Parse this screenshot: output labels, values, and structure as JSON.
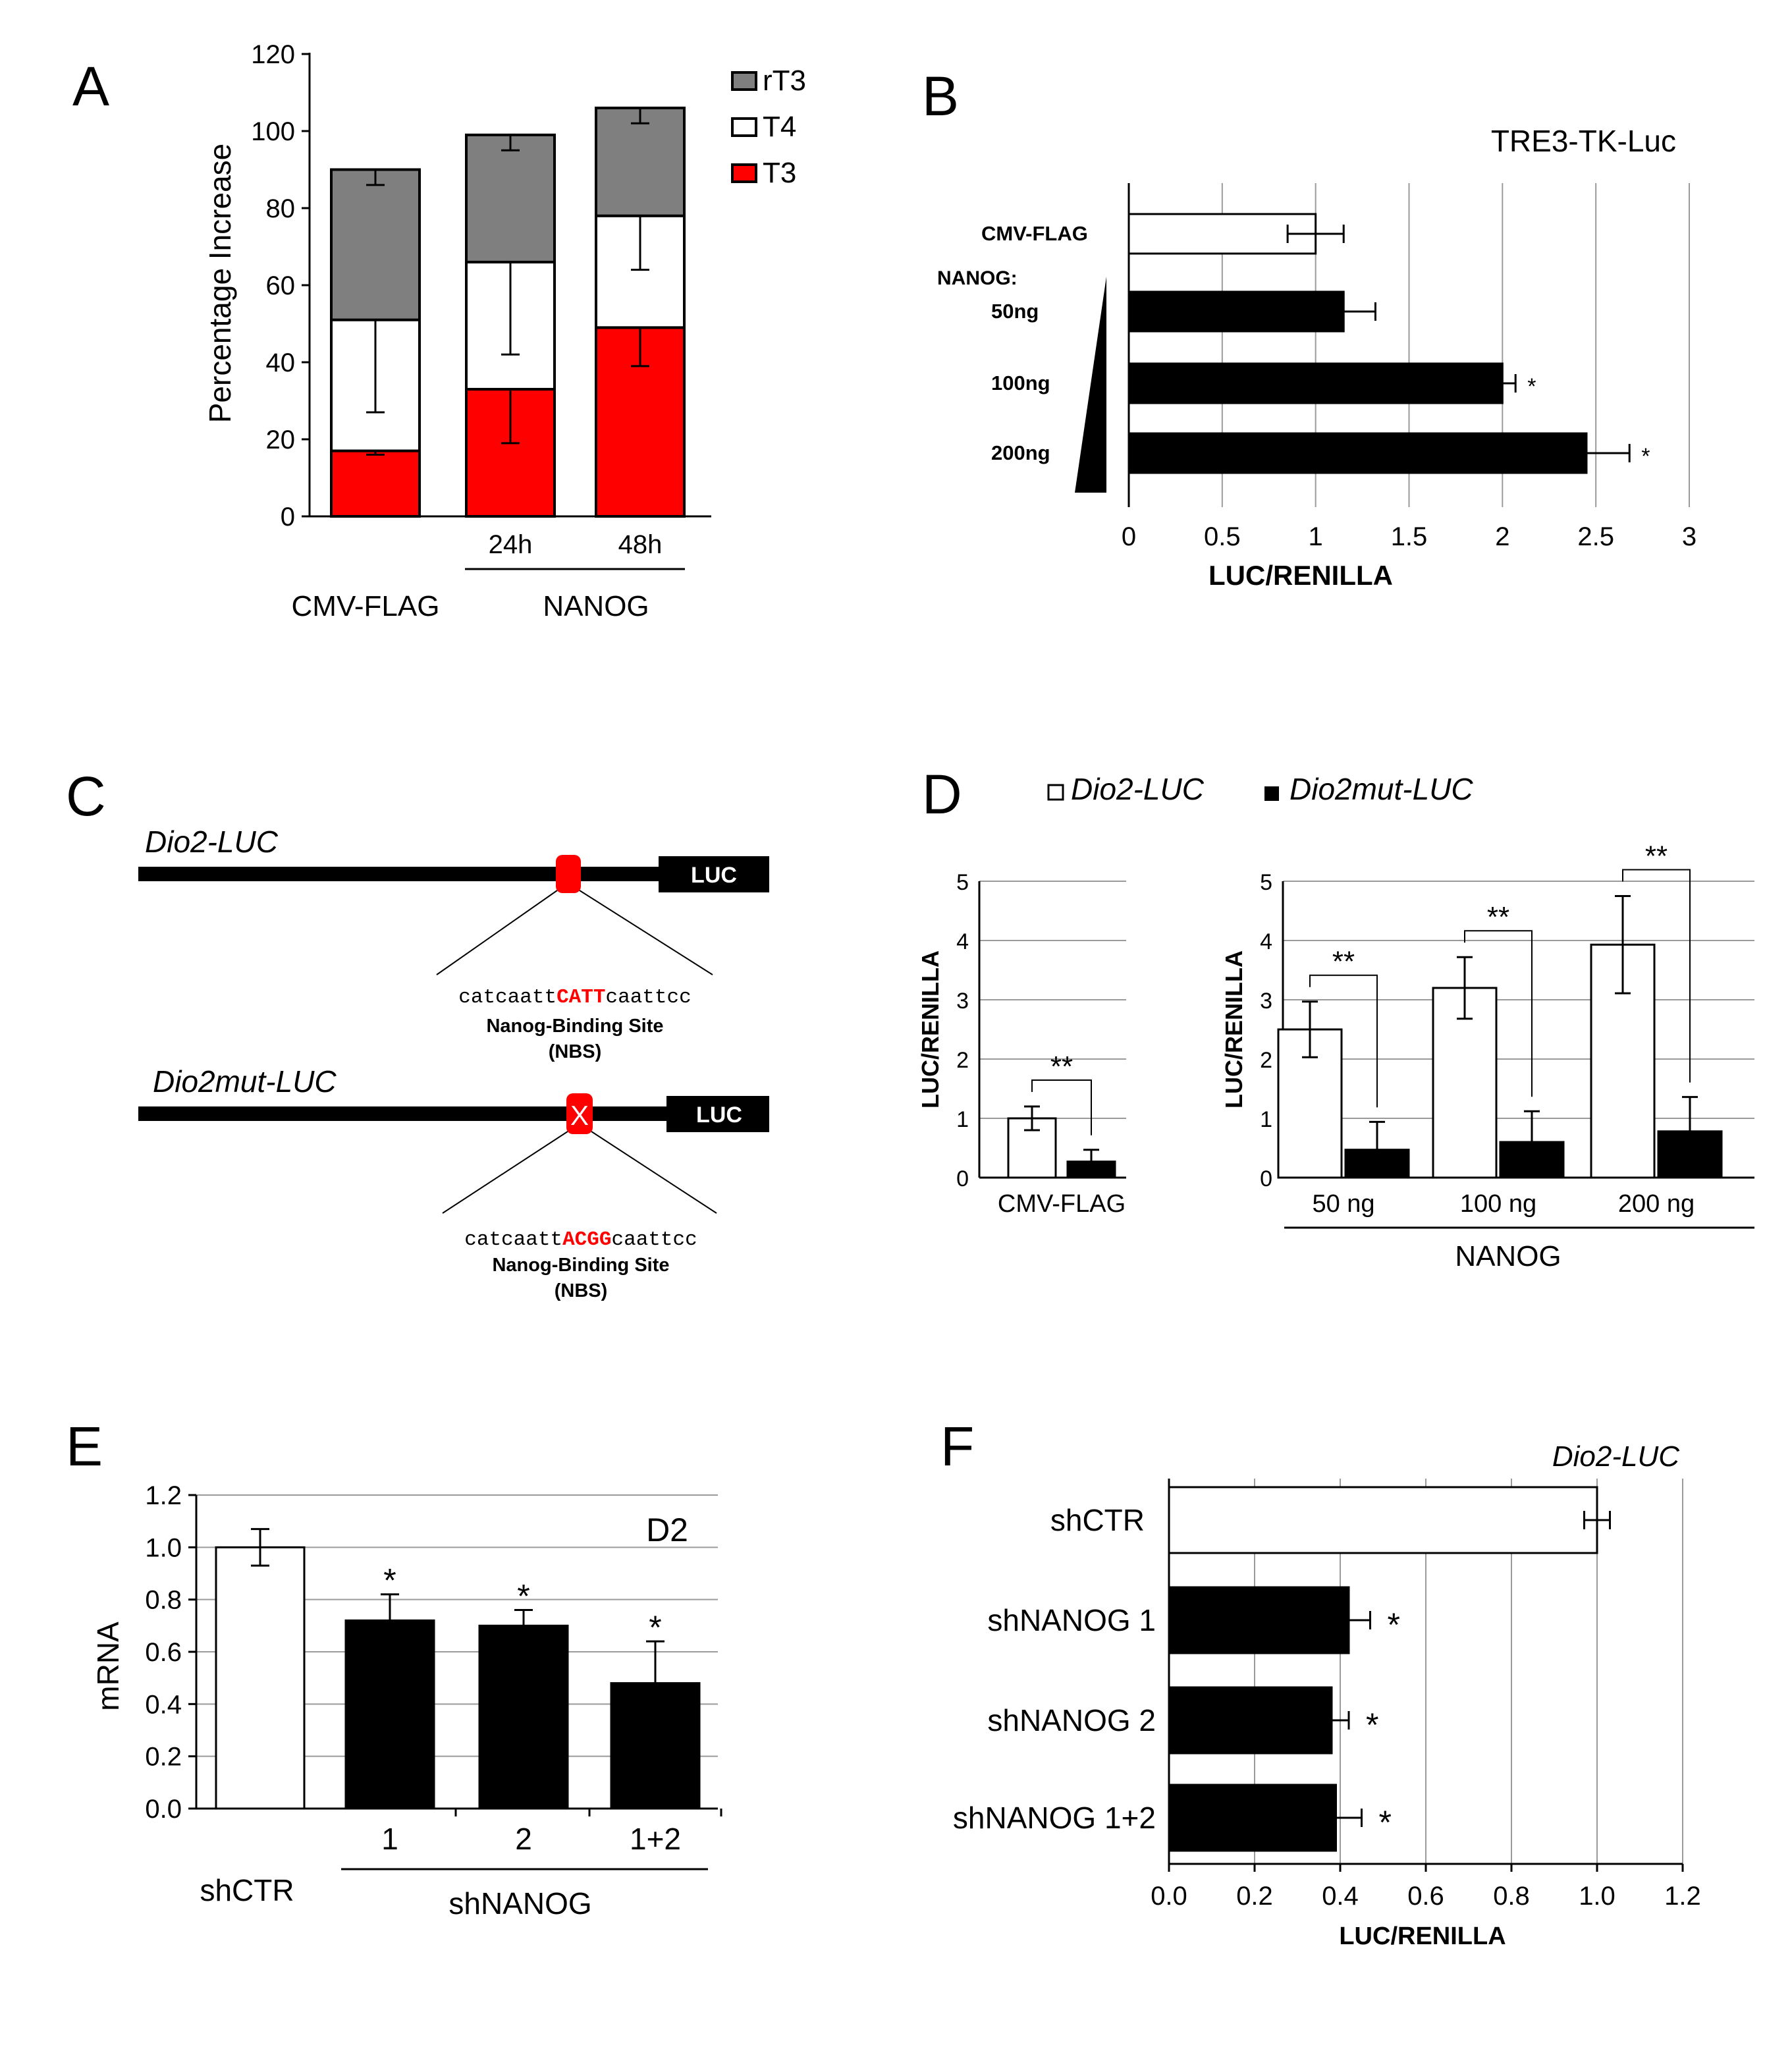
{
  "colors": {
    "red": "#ff0000",
    "grey": "#7f7f7f",
    "black": "#000000",
    "white": "#ffffff",
    "grid": "#9a9a9a"
  },
  "panels": {
    "A": {
      "letter": "A",
      "sub_24h": "24h",
      "sub_48h": "48h",
      "group_ctrl": "CMV-FLAG",
      "group_nanog": "NANOG"
    },
    "B": {
      "letter": "B",
      "nanog_header": "NANOG:"
    },
    "C": {
      "letter": "C",
      "construct1": {
        "name": "Dio2-LUC",
        "luc": "LUC",
        "seq_prefix": "catcaatt",
        "seq_core": "CATT",
        "seq_suffix": "caattcc",
        "site_label": "Nanog-Binding Site",
        "site_abbr": "(NBS)"
      },
      "construct2": {
        "name": "Dio2mut-LUC",
        "luc": "LUC",
        "mark": "X",
        "seq_prefix": "catcaatt",
        "seq_core": "ACGG",
        "seq_suffix": "caattcc",
        "site_label": "Nanog-Binding Site",
        "site_abbr": "(NBS)"
      }
    },
    "D": {
      "letter": "D",
      "legend_wt": "Dio2-LUC",
      "legend_mut": "Dio2mut-LUC",
      "group_label": "NANOG"
    },
    "E": {
      "letter": "E",
      "group_label": "shNANOG"
    },
    "F": {
      "letter": "F"
    }
  },
  "chart_data": [
    {
      "panel": "A",
      "type": "bar",
      "stacked": true,
      "ylabel": "Percentage Increase",
      "ylim": [
        0,
        120
      ],
      "yticks": [
        "0",
        "20",
        "40",
        "60",
        "80",
        "100",
        "120"
      ],
      "categories": [
        "CMV-FLAG",
        "24h",
        "48h"
      ],
      "series": [
        {
          "name": "T3",
          "color": "red",
          "values": [
            17,
            33,
            49
          ],
          "err_low": [
            1,
            14,
            10
          ]
        },
        {
          "name": "T4",
          "color": "white",
          "values": [
            34,
            33,
            29
          ],
          "err_low": [
            24,
            24,
            14
          ]
        },
        {
          "name": "rT3",
          "color": "grey",
          "values": [
            39,
            33,
            28
          ],
          "err_low": [
            4,
            4,
            4
          ]
        }
      ],
      "legend": [
        "rT3",
        "T4",
        "T3"
      ]
    },
    {
      "panel": "B",
      "type": "bar",
      "orientation": "horizontal",
      "title": "TRE3-TK-Luc",
      "xlabel": "LUC/RENILLA",
      "xlim": [
        0,
        3
      ],
      "xticks": [
        "0",
        "0.5",
        "1",
        "1.5",
        "2",
        "2.5",
        "3"
      ],
      "categories": [
        "CMV-FLAG",
        "50ng",
        "100ng",
        "200ng"
      ],
      "values": [
        1.0,
        1.15,
        2.0,
        2.45
      ],
      "err": [
        0.15,
        0.17,
        0.07,
        0.23
      ],
      "fills": [
        "white",
        "black",
        "black",
        "black"
      ],
      "significance": [
        "",
        "",
        "*",
        "*"
      ]
    },
    {
      "panel": "D-left",
      "type": "bar",
      "ylabel": "LUC/RENILLA",
      "ylim": [
        0,
        5
      ],
      "yticks": [
        "0",
        "1",
        "2",
        "3",
        "4",
        "5"
      ],
      "categories": [
        "CMV-FLAG"
      ],
      "series": [
        {
          "name": "Dio2-LUC",
          "values": [
            1.0
          ],
          "err": [
            0.2
          ]
        },
        {
          "name": "Dio2mut-LUC",
          "values": [
            0.27
          ],
          "err": [
            0.2
          ]
        }
      ],
      "significance": [
        "**"
      ]
    },
    {
      "panel": "D-right",
      "type": "bar",
      "ylabel": "LUC/RENILLA",
      "ylim": [
        0,
        5
      ],
      "yticks": [
        "0",
        "1",
        "2",
        "3",
        "4",
        "5"
      ],
      "categories": [
        "50 ng",
        "100 ng",
        "200 ng"
      ],
      "xlabel": "NANOG",
      "series": [
        {
          "name": "Dio2-LUC",
          "values": [
            2.5,
            3.2,
            3.93
          ],
          "err": [
            0.47,
            0.52,
            0.82
          ]
        },
        {
          "name": "Dio2mut-LUC",
          "values": [
            0.47,
            0.6,
            0.78
          ],
          "err": [
            0.47,
            0.52,
            0.58
          ]
        }
      ],
      "significance": [
        "**",
        "**",
        "**"
      ]
    },
    {
      "panel": "E",
      "type": "bar",
      "title": "D2",
      "ylabel": "mRNA",
      "ylim": [
        0,
        1.2
      ],
      "yticks": [
        "0.0",
        "0.2",
        "0.4",
        "0.6",
        "0.8",
        "1.0",
        "1.2"
      ],
      "categories": [
        "shCTR",
        "1",
        "2",
        "1+2"
      ],
      "values": [
        1.0,
        0.72,
        0.7,
        0.48
      ],
      "err": [
        0.07,
        0.1,
        0.06,
        0.16
      ],
      "fills": [
        "white",
        "black",
        "black",
        "black"
      ],
      "significance": [
        "",
        "*",
        "*",
        "*"
      ]
    },
    {
      "panel": "F",
      "type": "bar",
      "orientation": "horizontal",
      "title": "Dio2-LUC",
      "xlabel": "LUC/RENILLA",
      "xlim": [
        0,
        1.2
      ],
      "xticks": [
        "0.0",
        "0.2",
        "0.4",
        "0.6",
        "0.8",
        "1.0",
        "1.2"
      ],
      "categories": [
        "shCTR",
        "shNANOG 1",
        "shNANOG 2",
        "shNANOG 1+2"
      ],
      "values": [
        1.0,
        0.42,
        0.38,
        0.39
      ],
      "err": [
        0.03,
        0.05,
        0.04,
        0.06
      ],
      "fills": [
        "white",
        "black",
        "black",
        "black"
      ],
      "significance": [
        "",
        "*",
        "*",
        "*"
      ]
    }
  ]
}
